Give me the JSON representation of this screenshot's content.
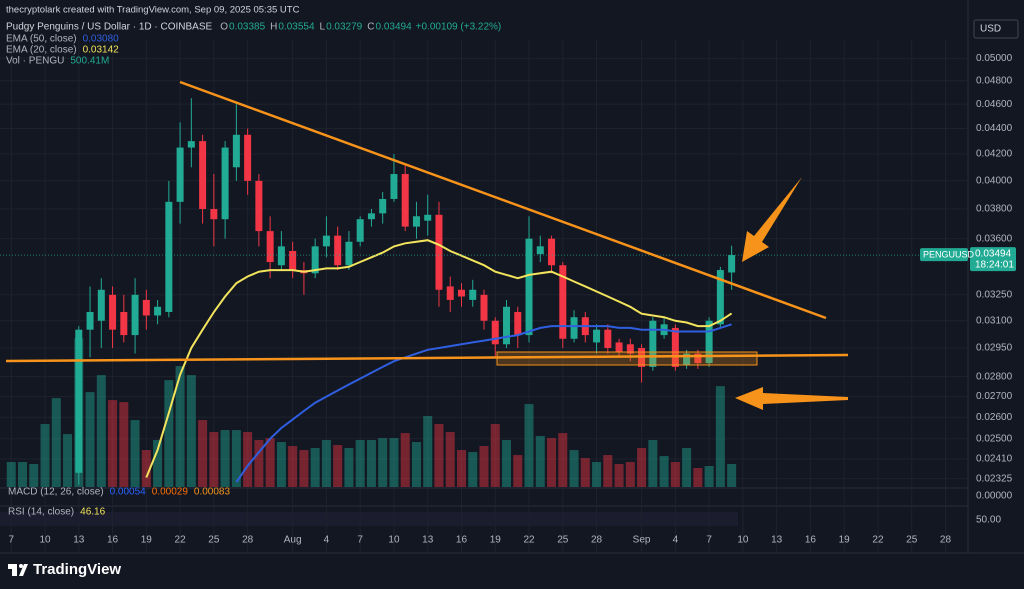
{
  "chart_data": {
    "type": "candlestick",
    "attribution": "thecryptolark created with TradingView.com, Sep 09, 2025 05:35 UTC",
    "title": "Pudgy Penguins / US Dollar · 1D · COINBASE",
    "ohlc_labels": [
      "O",
      "H",
      "L",
      "C"
    ],
    "change_label": "+0.00109 (+3.22%)",
    "currency": "USD",
    "symbol": "PENGUUSD",
    "countdown": "18:24:01",
    "brand": "TradingView",
    "log_scale": true,
    "grid": true,
    "up_color": "#22ab94",
    "down_color": "#f23645",
    "x": [
      "2025-07-07",
      "2025-07-08",
      "2025-07-09",
      "2025-07-10",
      "2025-07-11",
      "2025-07-12",
      "2025-07-13",
      "2025-07-14",
      "2025-07-15",
      "2025-07-16",
      "2025-07-17",
      "2025-07-18",
      "2025-07-19",
      "2025-07-20",
      "2025-07-21",
      "2025-07-22",
      "2025-07-23",
      "2025-07-24",
      "2025-07-25",
      "2025-07-26",
      "2025-07-27",
      "2025-07-28",
      "2025-07-29",
      "2025-07-30",
      "2025-07-31",
      "2025-08-01",
      "2025-08-02",
      "2025-08-03",
      "2025-08-04",
      "2025-08-05",
      "2025-08-06",
      "2025-08-07",
      "2025-08-08",
      "2025-08-09",
      "2025-08-10",
      "2025-08-11",
      "2025-08-12",
      "2025-08-13",
      "2025-08-14",
      "2025-08-15",
      "2025-08-16",
      "2025-08-17",
      "2025-08-18",
      "2025-08-19",
      "2025-08-20",
      "2025-08-21",
      "2025-08-22",
      "2025-08-23",
      "2025-08-24",
      "2025-08-25",
      "2025-08-26",
      "2025-08-27",
      "2025-08-28",
      "2025-08-29",
      "2025-08-30",
      "2025-08-31",
      "2025-09-01",
      "2025-09-02",
      "2025-09-03",
      "2025-09-04",
      "2025-09-05",
      "2025-09-06",
      "2025-09-07",
      "2025-09-08",
      "2025-09-09"
    ],
    "open": [
      null,
      null,
      null,
      null,
      null,
      null,
      0.0235,
      0.0305,
      0.031,
      0.0325,
      0.0315,
      0.0302,
      0.0322,
      0.0313,
      0.0315,
      0.0385,
      0.0425,
      0.043,
      0.038,
      0.0373,
      0.041,
      0.0435,
      0.04,
      0.0365,
      0.0343,
      0.0352,
      0.034,
      0.0338,
      0.0355,
      0.0362,
      0.0343,
      0.0358,
      0.0373,
      0.0377,
      0.0387,
      0.0405,
      0.0368,
      0.0372,
      0.0376,
      0.033,
      0.0328,
      0.0322,
      0.0325,
      0.031,
      0.0297,
      0.0315,
      0.0302,
      0.035,
      0.036,
      0.0343,
      0.03,
      0.0312,
      0.0298,
      0.0305,
      0.0298,
      0.0297,
      0.0295,
      0.0285,
      0.0302,
      0.0306,
      0.0286,
      0.0292,
      0.0287,
      0.0308,
      0.03385
    ],
    "high": [
      null,
      null,
      null,
      null,
      null,
      null,
      0.0307,
      0.033,
      0.0335,
      0.033,
      0.0325,
      0.0335,
      0.0328,
      0.0322,
      0.04,
      0.0445,
      0.0465,
      0.0435,
      0.0405,
      0.043,
      0.046,
      0.044,
      0.0405,
      0.0375,
      0.0365,
      0.0358,
      0.0345,
      0.036,
      0.0375,
      0.0368,
      0.0365,
      0.0375,
      0.038,
      0.0392,
      0.042,
      0.0412,
      0.0385,
      0.039,
      0.0385,
      0.0336,
      0.0332,
      0.0334,
      0.0328,
      0.0312,
      0.0322,
      0.0318,
      0.0375,
      0.0362,
      0.0362,
      0.0345,
      0.0316,
      0.0315,
      0.0308,
      0.0308,
      0.03,
      0.03,
      0.0297,
      0.0312,
      0.0312,
      0.0308,
      0.0294,
      0.0294,
      0.0312,
      0.0342,
      0.03554
    ],
    "low": [
      null,
      null,
      null,
      null,
      null,
      null,
      0.023,
      0.029,
      0.0295,
      0.0295,
      0.0298,
      0.0292,
      0.0305,
      0.0308,
      0.0312,
      0.037,
      0.041,
      0.037,
      0.0355,
      0.036,
      0.04,
      0.039,
      0.0355,
      0.0335,
      0.034,
      0.0335,
      0.0325,
      0.0335,
      0.0348,
      0.034,
      0.034,
      0.0355,
      0.0368,
      0.037,
      0.0385,
      0.0365,
      0.036,
      0.0362,
      0.0318,
      0.0315,
      0.0318,
      0.0318,
      0.0305,
      0.029,
      0.0295,
      0.0295,
      0.0298,
      0.0345,
      0.0338,
      0.0295,
      0.0298,
      0.0298,
      0.0292,
      0.0292,
      0.029,
      0.0288,
      0.0277,
      0.0283,
      0.03,
      0.0283,
      0.0284,
      0.0284,
      0.0285,
      0.0306,
      0.03279
    ],
    "close": [
      null,
      null,
      null,
      null,
      null,
      null,
      0.0305,
      0.0315,
      0.0328,
      0.0305,
      0.0302,
      0.0325,
      0.0313,
      0.0318,
      0.0385,
      0.0425,
      0.043,
      0.038,
      0.0373,
      0.0425,
      0.0435,
      0.04,
      0.0365,
      0.0345,
      0.0355,
      0.034,
      0.0338,
      0.0355,
      0.0362,
      0.0343,
      0.0358,
      0.0373,
      0.0377,
      0.0387,
      0.0405,
      0.0368,
      0.0375,
      0.0376,
      0.0328,
      0.0322,
      0.0324,
      0.0328,
      0.031,
      0.0297,
      0.0318,
      0.0302,
      0.036,
      0.0355,
      0.0343,
      0.03,
      0.0312,
      0.0302,
      0.0305,
      0.0295,
      0.0293,
      0.0292,
      0.0285,
      0.031,
      0.0308,
      0.0285,
      0.0292,
      0.0287,
      0.031,
      0.034,
      0.03494
    ],
    "series": [
      {
        "name": "EMA (50, close)",
        "color": "#2f5fe0",
        "last_value_label": "0.03080",
        "values": [
          null,
          null,
          null,
          null,
          null,
          null,
          null,
          null,
          null,
          null,
          null,
          null,
          null,
          null,
          null,
          null,
          null,
          null,
          null,
          null,
          0.0231,
          0.0238,
          0.0244,
          0.025,
          0.0255,
          0.0259,
          0.0263,
          0.0267,
          0.027,
          0.0273,
          0.0276,
          0.0279,
          0.0282,
          0.0285,
          0.0288,
          0.029,
          0.0292,
          0.0294,
          0.0295,
          0.0296,
          0.0297,
          0.0298,
          0.0299,
          0.03,
          0.0301,
          0.0302,
          0.0304,
          0.0306,
          0.0307,
          0.0307,
          0.0307,
          0.0307,
          0.0307,
          0.0307,
          0.0306,
          0.0306,
          0.0305,
          0.0305,
          0.0305,
          0.0304,
          0.0304,
          0.0304,
          0.0304,
          0.0306,
          0.0308
        ]
      },
      {
        "name": "EMA (20, close)",
        "color": "#f2e45c",
        "last_value_label": "0.03142",
        "values": [
          null,
          null,
          null,
          null,
          null,
          null,
          null,
          null,
          null,
          null,
          null,
          null,
          0.0233,
          0.0245,
          0.0262,
          0.0281,
          0.0295,
          0.0305,
          0.0315,
          0.0324,
          0.0332,
          0.0336,
          0.0339,
          0.034,
          0.034,
          0.034,
          0.0339,
          0.034,
          0.0341,
          0.0341,
          0.0342,
          0.0345,
          0.0348,
          0.0351,
          0.0355,
          0.0357,
          0.0358,
          0.0359,
          0.0356,
          0.0352,
          0.0349,
          0.0346,
          0.0343,
          0.0339,
          0.0337,
          0.0335,
          0.0337,
          0.0338,
          0.0339,
          0.0336,
          0.0333,
          0.033,
          0.0327,
          0.0324,
          0.0321,
          0.0318,
          0.0314,
          0.0313,
          0.0312,
          0.031,
          0.0309,
          0.0307,
          0.0307,
          0.031,
          0.03142
        ]
      }
    ],
    "volume": {
      "name": "Vol · PENGU",
      "last_value_label": "500.41M",
      "values": [
        544,
        544,
        500,
        1371,
        1936,
        1153,
        3242,
        2067,
        2437,
        1893,
        1849,
        1458,
        805,
        1023,
        2328,
        2633,
        2437,
        1458,
        1197,
        1240,
        1240,
        1197,
        1023,
        1066,
        979,
        892,
        805,
        849,
        1023,
        914,
        849,
        1023,
        1023,
        1066,
        1066,
        1175,
        979,
        1545,
        1371,
        1197,
        805,
        761,
        892,
        1371,
        1023,
        696,
        1806,
        1110,
        1066,
        1175,
        805,
        631,
        544,
        696,
        500,
        544,
        849,
        1023,
        674,
        544,
        849,
        413,
        457,
        2197,
        500.41
      ]
    },
    "indicators": {
      "macd": {
        "name": "MACD (12, 26, close)",
        "value_labels": [
          "0.00054",
          "0.00029",
          "0.00083"
        ],
        "axis_label": "0.00000"
      },
      "rsi": {
        "name": "RSI (14, close)",
        "value_labels": [
          "46.16"
        ],
        "axis_label": "50.00"
      }
    },
    "xlim": [
      "2025-07-06",
      "2025-09-30"
    ],
    "xticks": [
      {
        "value": "2025-07-07",
        "label": "7"
      },
      {
        "value": "2025-07-10",
        "label": "10"
      },
      {
        "value": "2025-07-13",
        "label": "13"
      },
      {
        "value": "2025-07-16",
        "label": "16"
      },
      {
        "value": "2025-07-19",
        "label": "19"
      },
      {
        "value": "2025-07-22",
        "label": "22"
      },
      {
        "value": "2025-07-25",
        "label": "25"
      },
      {
        "value": "2025-07-28",
        "label": "28"
      },
      {
        "value": "2025-08-01",
        "label": "Aug"
      },
      {
        "value": "2025-08-04",
        "label": "4"
      },
      {
        "value": "2025-08-07",
        "label": "7"
      },
      {
        "value": "2025-08-10",
        "label": "10"
      },
      {
        "value": "2025-08-13",
        "label": "13"
      },
      {
        "value": "2025-08-16",
        "label": "16"
      },
      {
        "value": "2025-08-19",
        "label": "19"
      },
      {
        "value": "2025-08-22",
        "label": "22"
      },
      {
        "value": "2025-08-25",
        "label": "25"
      },
      {
        "value": "2025-08-28",
        "label": "28"
      },
      {
        "value": "2025-09-01",
        "label": "Sep"
      },
      {
        "value": "2025-09-04",
        "label": "4"
      },
      {
        "value": "2025-09-07",
        "label": "7"
      },
      {
        "value": "2025-09-10",
        "label": "10"
      },
      {
        "value": "2025-09-13",
        "label": "13"
      },
      {
        "value": "2025-09-16",
        "label": "16"
      },
      {
        "value": "2025-09-19",
        "label": "19"
      },
      {
        "value": "2025-09-22",
        "label": "22"
      },
      {
        "value": "2025-09-25",
        "label": "25"
      },
      {
        "value": "2025-09-28",
        "label": "28"
      }
    ],
    "ylim": [
      0.0229,
      0.0517
    ],
    "yticks": [
      {
        "value": 0.05,
        "label": "0.05000"
      },
      {
        "value": 0.048,
        "label": "0.04800"
      },
      {
        "value": 0.046,
        "label": "0.04600"
      },
      {
        "value": 0.044,
        "label": "0.04400"
      },
      {
        "value": 0.042,
        "label": "0.04200"
      },
      {
        "value": 0.04,
        "label": "0.04000"
      },
      {
        "value": 0.038,
        "label": "0.03800"
      },
      {
        "value": 0.036,
        "label": "0.03600"
      },
      {
        "value": 0.0325,
        "label": "0.03250"
      },
      {
        "value": 0.031,
        "label": "0.03100"
      },
      {
        "value": 0.0295,
        "label": "0.02950"
      },
      {
        "value": 0.028,
        "label": "0.02800"
      },
      {
        "value": 0.027,
        "label": "0.02700"
      },
      {
        "value": 0.026,
        "label": "0.02600"
      },
      {
        "value": 0.025,
        "label": "0.02500"
      },
      {
        "value": 0.0241,
        "label": "0.02410"
      },
      {
        "value": 0.02325,
        "label": "0.02325"
      }
    ]
  }
}
